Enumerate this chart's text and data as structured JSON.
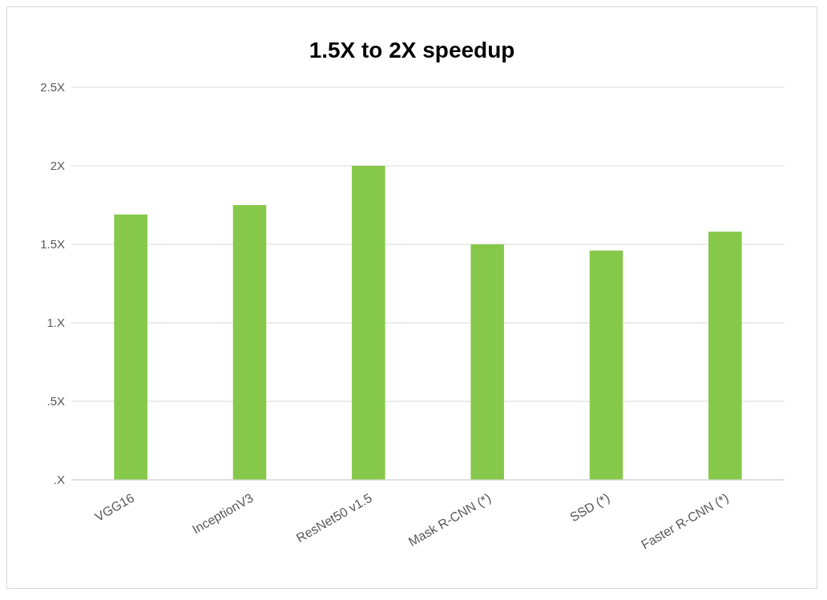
{
  "chart_data": {
    "type": "bar",
    "title": "1.5X to 2X speedup",
    "categories": [
      "VGG16",
      "InceptionV3",
      "ResNet50 v1.5",
      "Mask R-CNN (*)",
      "SSD  (*)",
      "Faster R-CNN (*)"
    ],
    "values": [
      1.69,
      1.75,
      2.0,
      1.5,
      1.46,
      1.58
    ],
    "color": "#86c84a",
    "ylim": [
      0,
      2.5
    ],
    "yticks": [
      {
        "value": 0,
        "label": ".X"
      },
      {
        "value": 0.5,
        "label": ".5X"
      },
      {
        "value": 1,
        "label": "1.X"
      },
      {
        "value": 1.5,
        "label": "1.5X"
      },
      {
        "value": 2,
        "label": "2X"
      },
      {
        "value": 2.5,
        "label": "2.5X"
      }
    ],
    "grid": "y"
  }
}
